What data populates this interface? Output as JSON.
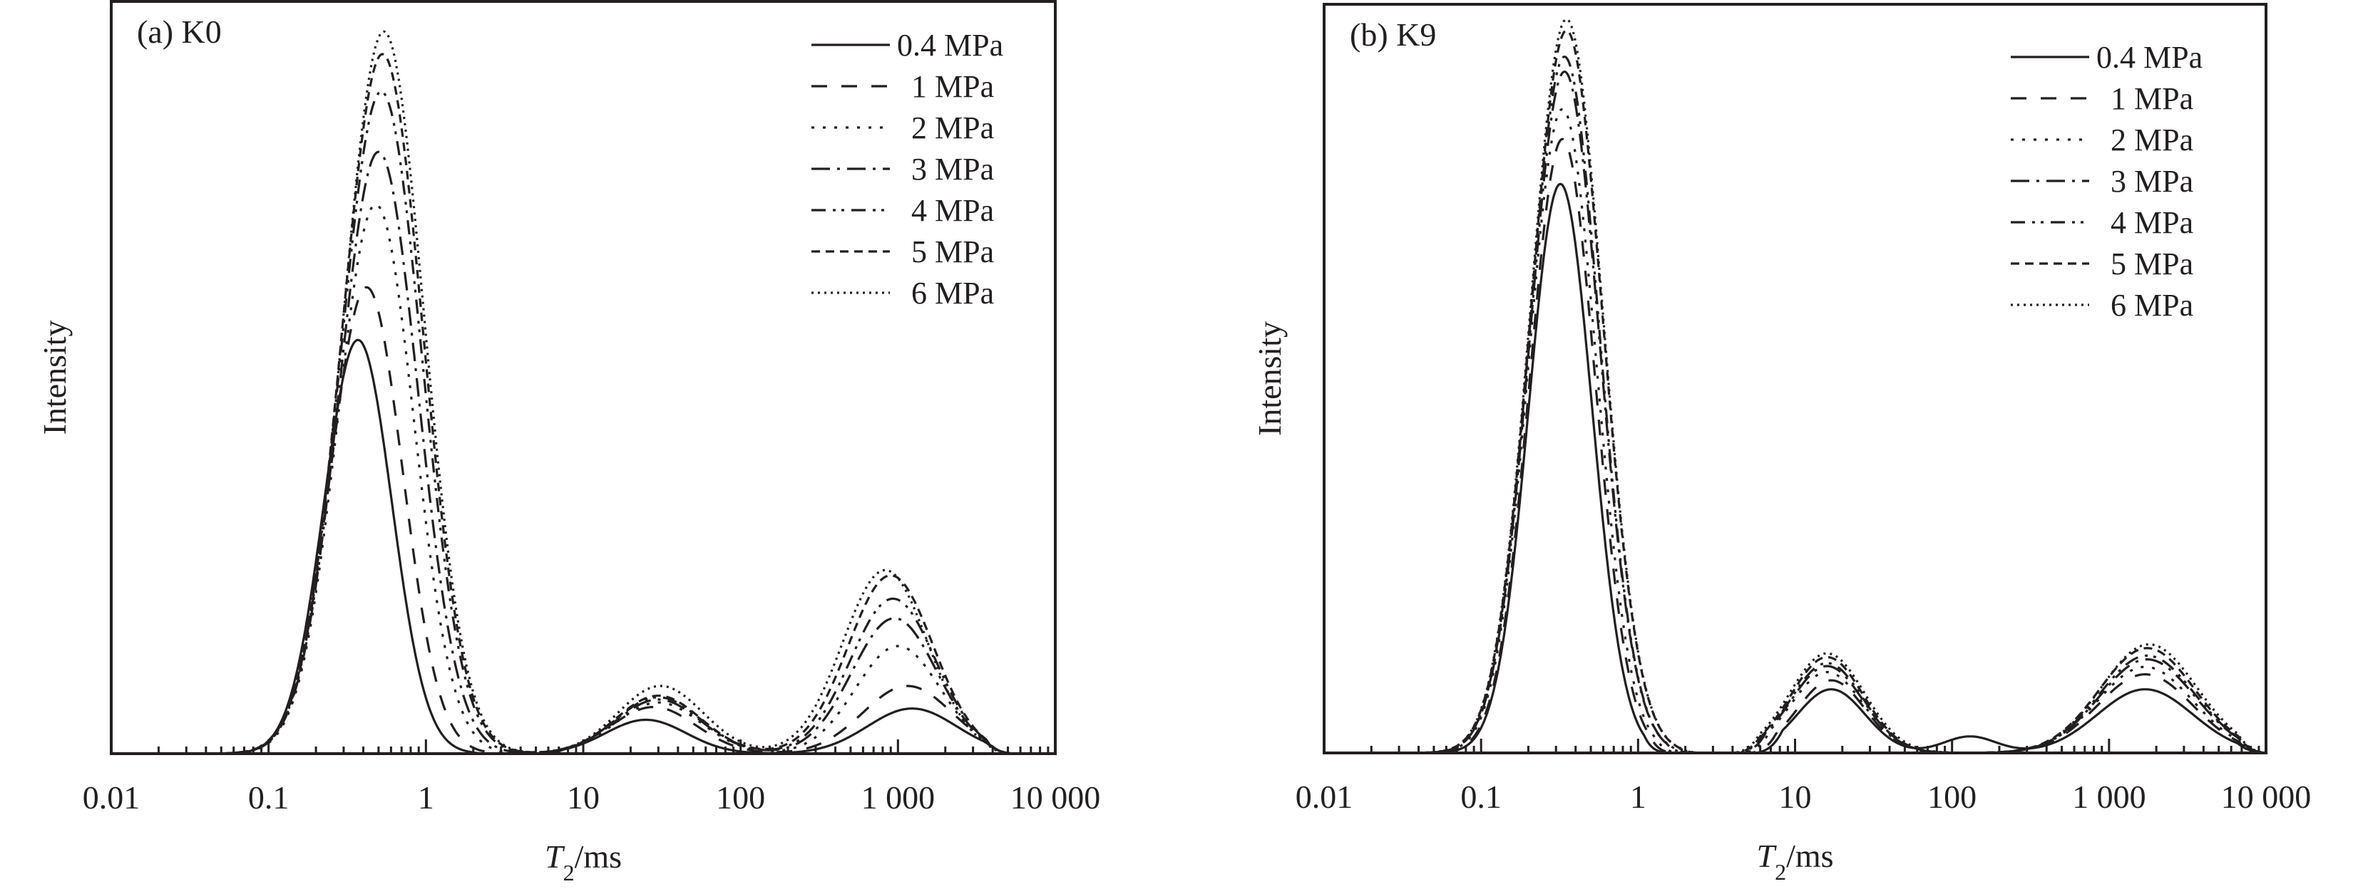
{
  "chart_data": [
    {
      "type": "line",
      "panel_title": "(a) K0",
      "xlabel_italic": "T",
      "xlabel_sub": "2",
      "xlabel_rest": "/ms",
      "ylabel": "Intensity",
      "xscale": "log",
      "xlim": [
        0.01,
        10000
      ],
      "ylim": [
        0,
        100
      ],
      "y_ticks_shown": false,
      "x_tick_labels": [
        "0.01",
        "0.1",
        "1",
        "10",
        "100",
        "1 000",
        "10 000"
      ],
      "x_tick_values": [
        0.01,
        0.1,
        1,
        10,
        100,
        1000,
        10000
      ],
      "legend_position": "top-right",
      "series": [
        {
          "name": "0.4 MPa",
          "dash": "solid",
          "peaks": [
            {
              "t2": 0.37,
              "height": 55,
              "width": 0.32
            },
            {
              "t2": 25,
              "height": 4.5,
              "width": 0.38
            },
            {
              "t2": 1230,
              "height": 6,
              "width": 0.42
            }
          ],
          "valley_floor": [
            {
              "t2": 10,
              "height": 3
            }
          ],
          "cutoffs": [
            [
              0.02,
              2.9
            ],
            [
              5,
              5500
            ]
          ]
        },
        {
          "name": "1 MPa",
          "dash": "long-dash",
          "peaks": [
            {
              "t2": 0.42,
              "height": 62,
              "width": 0.34
            },
            {
              "t2": 28,
              "height": 6.2,
              "width": 0.4
            },
            {
              "t2": 1150,
              "height": 9,
              "width": 0.42
            }
          ],
          "cutoffs": [
            [
              0.02,
              4.6
            ],
            [
              4.6,
              5200
            ]
          ]
        },
        {
          "name": "2 MPa",
          "dash": "dash-dot-sparse",
          "peaks": [
            {
              "t2": 0.48,
              "height": 73,
              "width": 0.36
            },
            {
              "t2": 30,
              "height": 6.8,
              "width": 0.4
            },
            {
              "t2": 1000,
              "height": 14.3,
              "width": 0.4
            }
          ],
          "cutoffs": [
            [
              0.02,
              5500
            ]
          ]
        },
        {
          "name": "3 MPa",
          "dash": "dash-dot",
          "peaks": [
            {
              "t2": 0.5,
              "height": 80,
              "width": 0.37
            },
            {
              "t2": 30,
              "height": 7.2,
              "width": 0.4
            },
            {
              "t2": 950,
              "height": 18,
              "width": 0.4
            }
          ],
          "cutoffs": [
            [
              0.02,
              5500
            ]
          ]
        },
        {
          "name": "4 MPa",
          "dash": "dash-dot-dot",
          "peaks": [
            {
              "t2": 0.52,
              "height": 88,
              "width": 0.38
            },
            {
              "t2": 30,
              "height": 7.5,
              "width": 0.4
            },
            {
              "t2": 930,
              "height": 20.6,
              "width": 0.4
            }
          ],
          "cutoffs": [
            [
              0.02,
              5500
            ]
          ]
        },
        {
          "name": "5 MPa",
          "dash": "short-dash",
          "peaks": [
            {
              "t2": 0.53,
              "height": 93,
              "width": 0.38
            },
            {
              "t2": 30,
              "height": 7.7,
              "width": 0.4
            },
            {
              "t2": 900,
              "height": 23.7,
              "width": 0.4
            }
          ],
          "cutoffs": [
            [
              0.02,
              5500
            ]
          ]
        },
        {
          "name": "6 MPa",
          "dash": "dotted",
          "peaks": [
            {
              "t2": 0.54,
              "height": 96,
              "width": 0.38
            },
            {
              "t2": 31,
              "height": 9,
              "width": 0.4
            },
            {
              "t2": 830,
              "height": 24.4,
              "width": 0.4
            }
          ],
          "cutoffs": [
            [
              0.02,
              5500
            ]
          ]
        }
      ]
    },
    {
      "type": "line",
      "panel_title": "(b) K9",
      "xlabel_italic": "T",
      "xlabel_sub": "2",
      "xlabel_rest": "/ms",
      "ylabel": "Intensity",
      "xscale": "log",
      "xlim": [
        0.01,
        10000
      ],
      "ylim": [
        0,
        100
      ],
      "y_ticks_shown": false,
      "x_tick_labels": [
        "0.01",
        "0.1",
        "1",
        "10",
        "100",
        "1 000",
        "10 000"
      ],
      "x_tick_values": [
        0.01,
        0.1,
        1,
        10,
        100,
        1000,
        10000
      ],
      "legend_position": "top-right",
      "series": [
        {
          "name": "0.4 MPa",
          "dash": "solid",
          "peaks": [
            {
              "t2": 0.32,
              "height": 76,
              "width": 0.3
            },
            {
              "t2": 17,
              "height": 8.5,
              "width": 0.32
            },
            {
              "t2": 1700,
              "height": 8.5,
              "width": 0.45
            },
            {
              "t2": 130,
              "height": 2.2,
              "width": 0.25
            }
          ],
          "cutoffs": [
            [
              0.02,
              1.66
            ],
            [
              5.5,
              10000
            ]
          ]
        },
        {
          "name": "1 MPa",
          "dash": "long-dash",
          "peaks": [
            {
              "t2": 0.33,
              "height": 82,
              "width": 0.31
            },
            {
              "t2": 17,
              "height": 9.7,
              "width": 0.32
            },
            {
              "t2": 1700,
              "height": 10.5,
              "width": 0.45
            }
          ],
          "cutoffs": [
            [
              0.02,
              1.8
            ],
            [
              5,
              10000
            ]
          ]
        },
        {
          "name": "2 MPa",
          "dash": "dash-dot-sparse",
          "peaks": [
            {
              "t2": 0.33,
              "height": 86,
              "width": 0.32
            },
            {
              "t2": 16,
              "height": 10.8,
              "width": 0.34
            },
            {
              "t2": 1700,
              "height": 11.5,
              "width": 0.45
            }
          ],
          "cutoffs": [
            [
              0.02,
              2.0
            ],
            [
              4.6,
              10000
            ]
          ]
        },
        {
          "name": "3 MPa",
          "dash": "dash-dot",
          "peaks": [
            {
              "t2": 0.34,
              "height": 91,
              "width": 0.33
            },
            {
              "t2": 16,
              "height": 11.6,
              "width": 0.34
            },
            {
              "t2": 1750,
              "height": 12.5,
              "width": 0.45
            }
          ],
          "cutoffs": [
            [
              0.02,
              2.3
            ],
            [
              4.3,
              10000
            ]
          ]
        },
        {
          "name": "4 MPa",
          "dash": "dash-dot-dot",
          "peaks": [
            {
              "t2": 0.34,
              "height": 93,
              "width": 0.33
            },
            {
              "t2": 16,
              "height": 12,
              "width": 0.34
            },
            {
              "t2": 1750,
              "height": 13,
              "width": 0.45
            }
          ],
          "cutoffs": [
            [
              0.02,
              2.5
            ],
            [
              4.1,
              10000
            ]
          ]
        },
        {
          "name": "5 MPa",
          "dash": "short-dash",
          "peaks": [
            {
              "t2": 0.35,
              "height": 96.5,
              "width": 0.34
            },
            {
              "t2": 16,
              "height": 12.8,
              "width": 0.34
            },
            {
              "t2": 1750,
              "height": 14,
              "width": 0.45
            }
          ],
          "cutoffs": [
            [
              0.02,
              2.7
            ],
            [
              4,
              10000
            ]
          ]
        },
        {
          "name": "6 MPa",
          "dash": "dotted",
          "peaks": [
            {
              "t2": 0.35,
              "height": 98,
              "width": 0.34
            },
            {
              "t2": 16,
              "height": 13.3,
              "width": 0.35
            },
            {
              "t2": 1800,
              "height": 14.5,
              "width": 0.45
            }
          ],
          "cutoffs": [
            [
              0.02,
              2.8
            ],
            [
              3.9,
              10000
            ]
          ]
        }
      ]
    }
  ]
}
